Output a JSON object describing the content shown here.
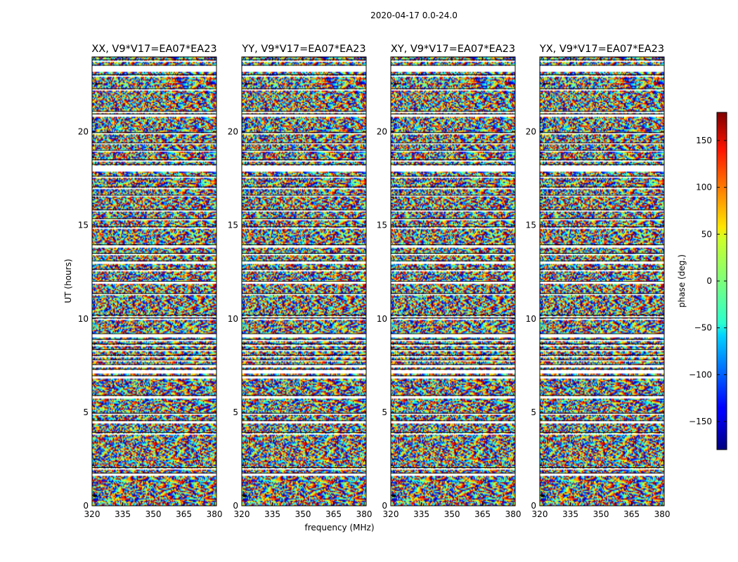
{
  "chart_data": {
    "type": "heatmap",
    "suptitle": "2020-04-17 0.0-24.0",
    "panels": [
      {
        "title": "XX, V9*V17=EA07*EA23",
        "polarization": "XX"
      },
      {
        "title": "YY, V9*V17=EA07*EA23",
        "polarization": "YY"
      },
      {
        "title": "XY, V9*V17=EA07*EA23",
        "polarization": "XY"
      },
      {
        "title": "YX, V9*V17=EA07*EA23",
        "polarization": "YX"
      }
    ],
    "xlabel": "frequency (MHz)",
    "ylabel": "UT (hours)",
    "xlim": [
      320,
      381
    ],
    "ylim": [
      0,
      24
    ],
    "xticks": [
      320,
      335,
      350,
      365,
      380
    ],
    "yticks": [
      0,
      5,
      10,
      15,
      20
    ],
    "colorbar": {
      "label": "phase (deg.)",
      "vmin": -180,
      "vmax": 180,
      "ticks": [
        -150,
        -100,
        -50,
        0,
        50,
        100,
        150
      ],
      "ticklabels": [
        "−150",
        "−100",
        "−50",
        "0",
        "50",
        "100",
        "150"
      ],
      "colormap": "jet"
    },
    "flagged_gaps_hours": [
      [
        1.65,
        1.75
      ],
      [
        1.95,
        2.05
      ],
      [
        3.85,
        3.92
      ],
      [
        4.45,
        4.55
      ],
      [
        4.9,
        4.95
      ],
      [
        5.8,
        5.9
      ],
      [
        6.85,
        6.95
      ],
      [
        7.1,
        7.3
      ],
      [
        7.45,
        7.55
      ],
      [
        7.75,
        7.8
      ],
      [
        7.95,
        8.05
      ],
      [
        8.3,
        8.35
      ],
      [
        8.55,
        8.65
      ],
      [
        8.85,
        8.9
      ],
      [
        9.05,
        9.2
      ],
      [
        9.95,
        10.05
      ],
      [
        10.12,
        10.2
      ],
      [
        11.3,
        11.35
      ],
      [
        11.9,
        12.0
      ],
      [
        12.6,
        12.65
      ],
      [
        12.95,
        13.1
      ],
      [
        13.45,
        13.5
      ],
      [
        13.85,
        13.95
      ],
      [
        14.85,
        14.92
      ],
      [
        15.3,
        15.35
      ],
      [
        15.75,
        15.82
      ],
      [
        16.55,
        16.6
      ],
      [
        16.95,
        17.05
      ],
      [
        17.55,
        17.62
      ],
      [
        17.9,
        18.25
      ],
      [
        18.45,
        18.5
      ],
      [
        18.95,
        19.0
      ],
      [
        19.35,
        19.4
      ],
      [
        19.9,
        19.95
      ],
      [
        20.85,
        20.95
      ],
      [
        21.05,
        21.1
      ],
      [
        22.25,
        22.3
      ],
      [
        22.95,
        23.05
      ],
      [
        23.25,
        23.55
      ],
      [
        23.8,
        23.85
      ]
    ]
  }
}
